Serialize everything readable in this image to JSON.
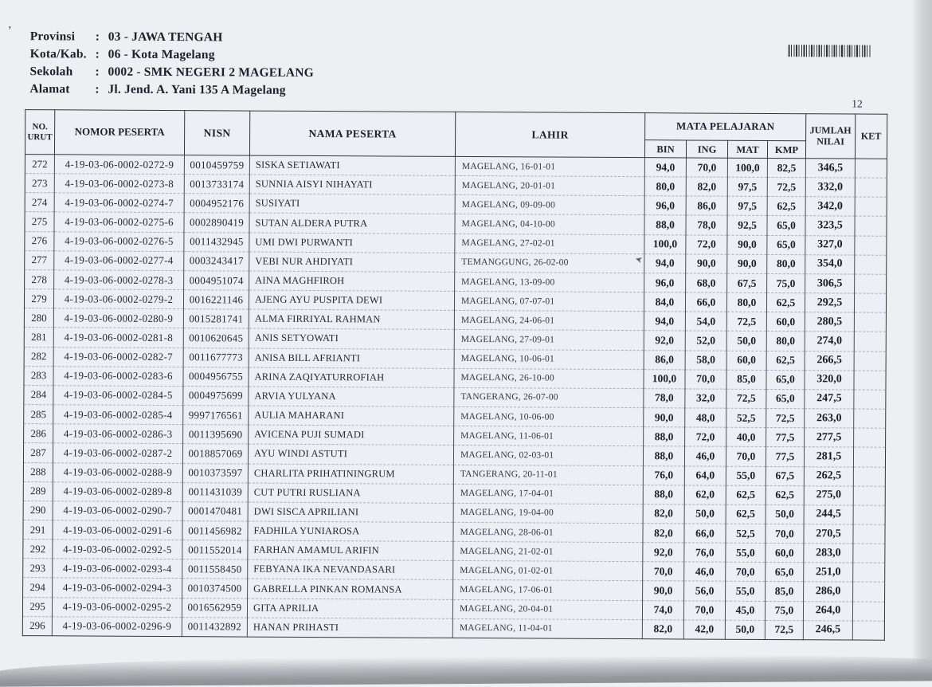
{
  "page": {
    "number": "12",
    "annotations": {
      "corner_mark": "’",
      "bottom_marks": ". .",
      "pen_arrow_glyph": "➤"
    },
    "colors": {
      "paper": "#eef0f4",
      "ink": "#22232d",
      "table_border": "#34353c",
      "row_line": "#acafb7",
      "scan_shadow": "#95989c"
    }
  },
  "doc_header": {
    "fields": [
      {
        "label": "Provinsi",
        "sep": ":",
        "value": "03 - JAWA TENGAH"
      },
      {
        "label": "Kota/Kab.",
        "sep": ":",
        "value": "06 - Kota Magelang"
      },
      {
        "label": "Sekolah",
        "sep": ":",
        "value": "0002 - SMK NEGERI 2 MAGELANG"
      },
      {
        "label": "Alamat",
        "sep": ":",
        "value": "Jl. Jend. A. Yani 135 A Magelang"
      }
    ]
  },
  "table": {
    "columns": {
      "no": "NO. URUT",
      "nomor": "NOMOR PESERTA",
      "nisn": "NISN",
      "nama": "NAMA PESERTA",
      "lahir": "LAHIR",
      "mata_pelajaran": "MATA PELAJARAN",
      "subjects": [
        "BIN",
        "ING",
        "MAT",
        "KMP"
      ],
      "jumlah": "JUMLAH NILAI",
      "ket": "KET"
    },
    "row_keys": [
      "no",
      "nomor",
      "nisn",
      "nama",
      "lahir",
      "bin",
      "ing",
      "mat",
      "kmp",
      "jumlah",
      "ket"
    ],
    "rows": [
      {
        "no": "272",
        "nomor": "4-19-03-06-0002-0272-9",
        "nisn": "0010459759",
        "nama": "SISKA SETIAWATI",
        "lahir": "MAGELANG, 16-01-01",
        "bin": "94,0",
        "ing": "70,0",
        "mat": "100,0",
        "kmp": "82,5",
        "jumlah": "346,5",
        "ket": ""
      },
      {
        "no": "273",
        "nomor": "4-19-03-06-0002-0273-8",
        "nisn": "0013733174",
        "nama": "SUNNIA AISYI NIHAYATI",
        "lahir": "MAGELANG, 20-01-01",
        "bin": "80,0",
        "ing": "82,0",
        "mat": "97,5",
        "kmp": "72,5",
        "jumlah": "332,0",
        "ket": ""
      },
      {
        "no": "274",
        "nomor": "4-19-03-06-0002-0274-7",
        "nisn": "0004952176",
        "nama": "SUSIYATI",
        "lahir": "MAGELANG, 09-09-00",
        "bin": "96,0",
        "ing": "86,0",
        "mat": "97,5",
        "kmp": "62,5",
        "jumlah": "342,0",
        "ket": ""
      },
      {
        "no": "275",
        "nomor": "4-19-03-06-0002-0275-6",
        "nisn": "0002890419",
        "nama": "SUTAN ALDERA PUTRA",
        "lahir": "MAGELANG, 04-10-00",
        "bin": "88,0",
        "ing": "78,0",
        "mat": "92,5",
        "kmp": "65,0",
        "jumlah": "323,5",
        "ket": ""
      },
      {
        "no": "276",
        "nomor": "4-19-03-06-0002-0276-5",
        "nisn": "0011432945",
        "nama": "UMI DWI PURWANTI",
        "lahir": "MAGELANG, 27-02-01",
        "bin": "100,0",
        "ing": "72,0",
        "mat": "90,0",
        "kmp": "65,0",
        "jumlah": "327,0",
        "ket": ""
      },
      {
        "no": "277",
        "nomor": "4-19-03-06-0002-0277-4",
        "nisn": "0003243417",
        "nama": "VEBI NUR AHDIYATI",
        "lahir": "TEMANGGUNG, 26-02-00",
        "bin": "94,0",
        "ing": "90,0",
        "mat": "90,0",
        "kmp": "80,0",
        "jumlah": "354,0",
        "ket": ""
      },
      {
        "no": "278",
        "nomor": "4-19-03-06-0002-0278-3",
        "nisn": "0004951074",
        "nama": "AINA MAGHFIROH",
        "lahir": "MAGELANG, 13-09-00",
        "bin": "96,0",
        "ing": "68,0",
        "mat": "67,5",
        "kmp": "75,0",
        "jumlah": "306,5",
        "ket": ""
      },
      {
        "no": "279",
        "nomor": "4-19-03-06-0002-0279-2",
        "nisn": "0016221146",
        "nama": "AJENG AYU PUSPITA DEWI",
        "lahir": "MAGELANG, 07-07-01",
        "bin": "84,0",
        "ing": "66,0",
        "mat": "80,0",
        "kmp": "62,5",
        "jumlah": "292,5",
        "ket": ""
      },
      {
        "no": "280",
        "nomor": "4-19-03-06-0002-0280-9",
        "nisn": "0015281741",
        "nama": "ALMA FIRRIYAL RAHMAN",
        "lahir": "MAGELANG, 24-06-01",
        "bin": "94,0",
        "ing": "54,0",
        "mat": "72,5",
        "kmp": "60,0",
        "jumlah": "280,5",
        "ket": ""
      },
      {
        "no": "281",
        "nomor": "4-19-03-06-0002-0281-8",
        "nisn": "0010620645",
        "nama": "ANIS SETYOWATI",
        "lahir": "MAGELANG, 27-09-01",
        "bin": "92,0",
        "ing": "52,0",
        "mat": "50,0",
        "kmp": "80,0",
        "jumlah": "274,0",
        "ket": ""
      },
      {
        "no": "282",
        "nomor": "4-19-03-06-0002-0282-7",
        "nisn": "0011677773",
        "nama": "ANISA BILL AFRIANTI",
        "lahir": "MAGELANG, 10-06-01",
        "bin": "86,0",
        "ing": "58,0",
        "mat": "60,0",
        "kmp": "62,5",
        "jumlah": "266,5",
        "ket": ""
      },
      {
        "no": "283",
        "nomor": "4-19-03-06-0002-0283-6",
        "nisn": "0004956755",
        "nama": "ARINA ZAQIYATURROFIAH",
        "lahir": "MAGELANG, 26-10-00",
        "bin": "100,0",
        "ing": "70,0",
        "mat": "85,0",
        "kmp": "65,0",
        "jumlah": "320,0",
        "ket": ""
      },
      {
        "no": "284",
        "nomor": "4-19-03-06-0002-0284-5",
        "nisn": "0004975699",
        "nama": "ARVIA YULYANA",
        "lahir": "TANGERANG, 26-07-00",
        "bin": "78,0",
        "ing": "32,0",
        "mat": "72,5",
        "kmp": "65,0",
        "jumlah": "247,5",
        "ket": ""
      },
      {
        "no": "285",
        "nomor": "4-19-03-06-0002-0285-4",
        "nisn": "9997176561",
        "nama": "AULIA MAHARANI",
        "lahir": "MAGELANG, 10-06-00",
        "bin": "90,0",
        "ing": "48,0",
        "mat": "52,5",
        "kmp": "72,5",
        "jumlah": "263,0",
        "ket": ""
      },
      {
        "no": "286",
        "nomor": "4-19-03-06-0002-0286-3",
        "nisn": "0011395690",
        "nama": "AVICENA PUJI SUMADI",
        "lahir": "MAGELANG, 11-06-01",
        "bin": "88,0",
        "ing": "72,0",
        "mat": "40,0",
        "kmp": "77,5",
        "jumlah": "277,5",
        "ket": ""
      },
      {
        "no": "287",
        "nomor": "4-19-03-06-0002-0287-2",
        "nisn": "0018857069",
        "nama": "AYU WINDI ASTUTI",
        "lahir": "MAGELANG, 02-03-01",
        "bin": "88,0",
        "ing": "46,0",
        "mat": "70,0",
        "kmp": "77,5",
        "jumlah": "281,5",
        "ket": ""
      },
      {
        "no": "288",
        "nomor": "4-19-03-06-0002-0288-9",
        "nisn": "0010373597",
        "nama": "CHARLITA PRIHATININGRUM",
        "lahir": "TANGERANG, 20-11-01",
        "bin": "76,0",
        "ing": "64,0",
        "mat": "55,0",
        "kmp": "67,5",
        "jumlah": "262,5",
        "ket": ""
      },
      {
        "no": "289",
        "nomor": "4-19-03-06-0002-0289-8",
        "nisn": "0011431039",
        "nama": "CUT PUTRI RUSLIANA",
        "lahir": "MAGELANG, 17-04-01",
        "bin": "88,0",
        "ing": "62,0",
        "mat": "62,5",
        "kmp": "62,5",
        "jumlah": "275,0",
        "ket": ""
      },
      {
        "no": "290",
        "nomor": "4-19-03-06-0002-0290-7",
        "nisn": "0001470481",
        "nama": "DWI SISCA APRILIANI",
        "lahir": "MAGELANG, 19-04-00",
        "bin": "82,0",
        "ing": "50,0",
        "mat": "62,5",
        "kmp": "50,0",
        "jumlah": "244,5",
        "ket": ""
      },
      {
        "no": "291",
        "nomor": "4-19-03-06-0002-0291-6",
        "nisn": "0011456982",
        "nama": "FADHILA YUNIAROSA",
        "lahir": "MAGELANG, 28-06-01",
        "bin": "82,0",
        "ing": "66,0",
        "mat": "52,5",
        "kmp": "70,0",
        "jumlah": "270,5",
        "ket": ""
      },
      {
        "no": "292",
        "nomor": "4-19-03-06-0002-0292-5",
        "nisn": "0011552014",
        "nama": "FARHAN AMAMUL ARIFIN",
        "lahir": "MAGELANG, 21-02-01",
        "bin": "92,0",
        "ing": "76,0",
        "mat": "55,0",
        "kmp": "60,0",
        "jumlah": "283,0",
        "ket": ""
      },
      {
        "no": "293",
        "nomor": "4-19-03-06-0002-0293-4",
        "nisn": "0011558450",
        "nama": "FEBYANA IKA NEVANDASARI",
        "lahir": "MAGELANG, 01-02-01",
        "bin": "70,0",
        "ing": "46,0",
        "mat": "70,0",
        "kmp": "65,0",
        "jumlah": "251,0",
        "ket": ""
      },
      {
        "no": "294",
        "nomor": "4-19-03-06-0002-0294-3",
        "nisn": "0010374500",
        "nama": "GABRELLA PINKAN ROMANSA",
        "lahir": "MAGELANG, 17-06-01",
        "bin": "90,0",
        "ing": "56,0",
        "mat": "55,0",
        "kmp": "85,0",
        "jumlah": "286,0",
        "ket": ""
      },
      {
        "no": "295",
        "nomor": "4-19-03-06-0002-0295-2",
        "nisn": "0016562959",
        "nama": "GITA APRILIA",
        "lahir": "MAGELANG, 20-04-01",
        "bin": "74,0",
        "ing": "70,0",
        "mat": "45,0",
        "kmp": "75,0",
        "jumlah": "264,0",
        "ket": ""
      },
      {
        "no": "296",
        "nomor": "4-19-03-06-0002-0296-9",
        "nisn": "0011432892",
        "nama": "HANAN PRIHASTI",
        "lahir": "MAGELANG, 11-04-01",
        "bin": "82,0",
        "ing": "42,0",
        "mat": "50,0",
        "kmp": "72,5",
        "jumlah": "246,5",
        "ket": ""
      }
    ]
  }
}
